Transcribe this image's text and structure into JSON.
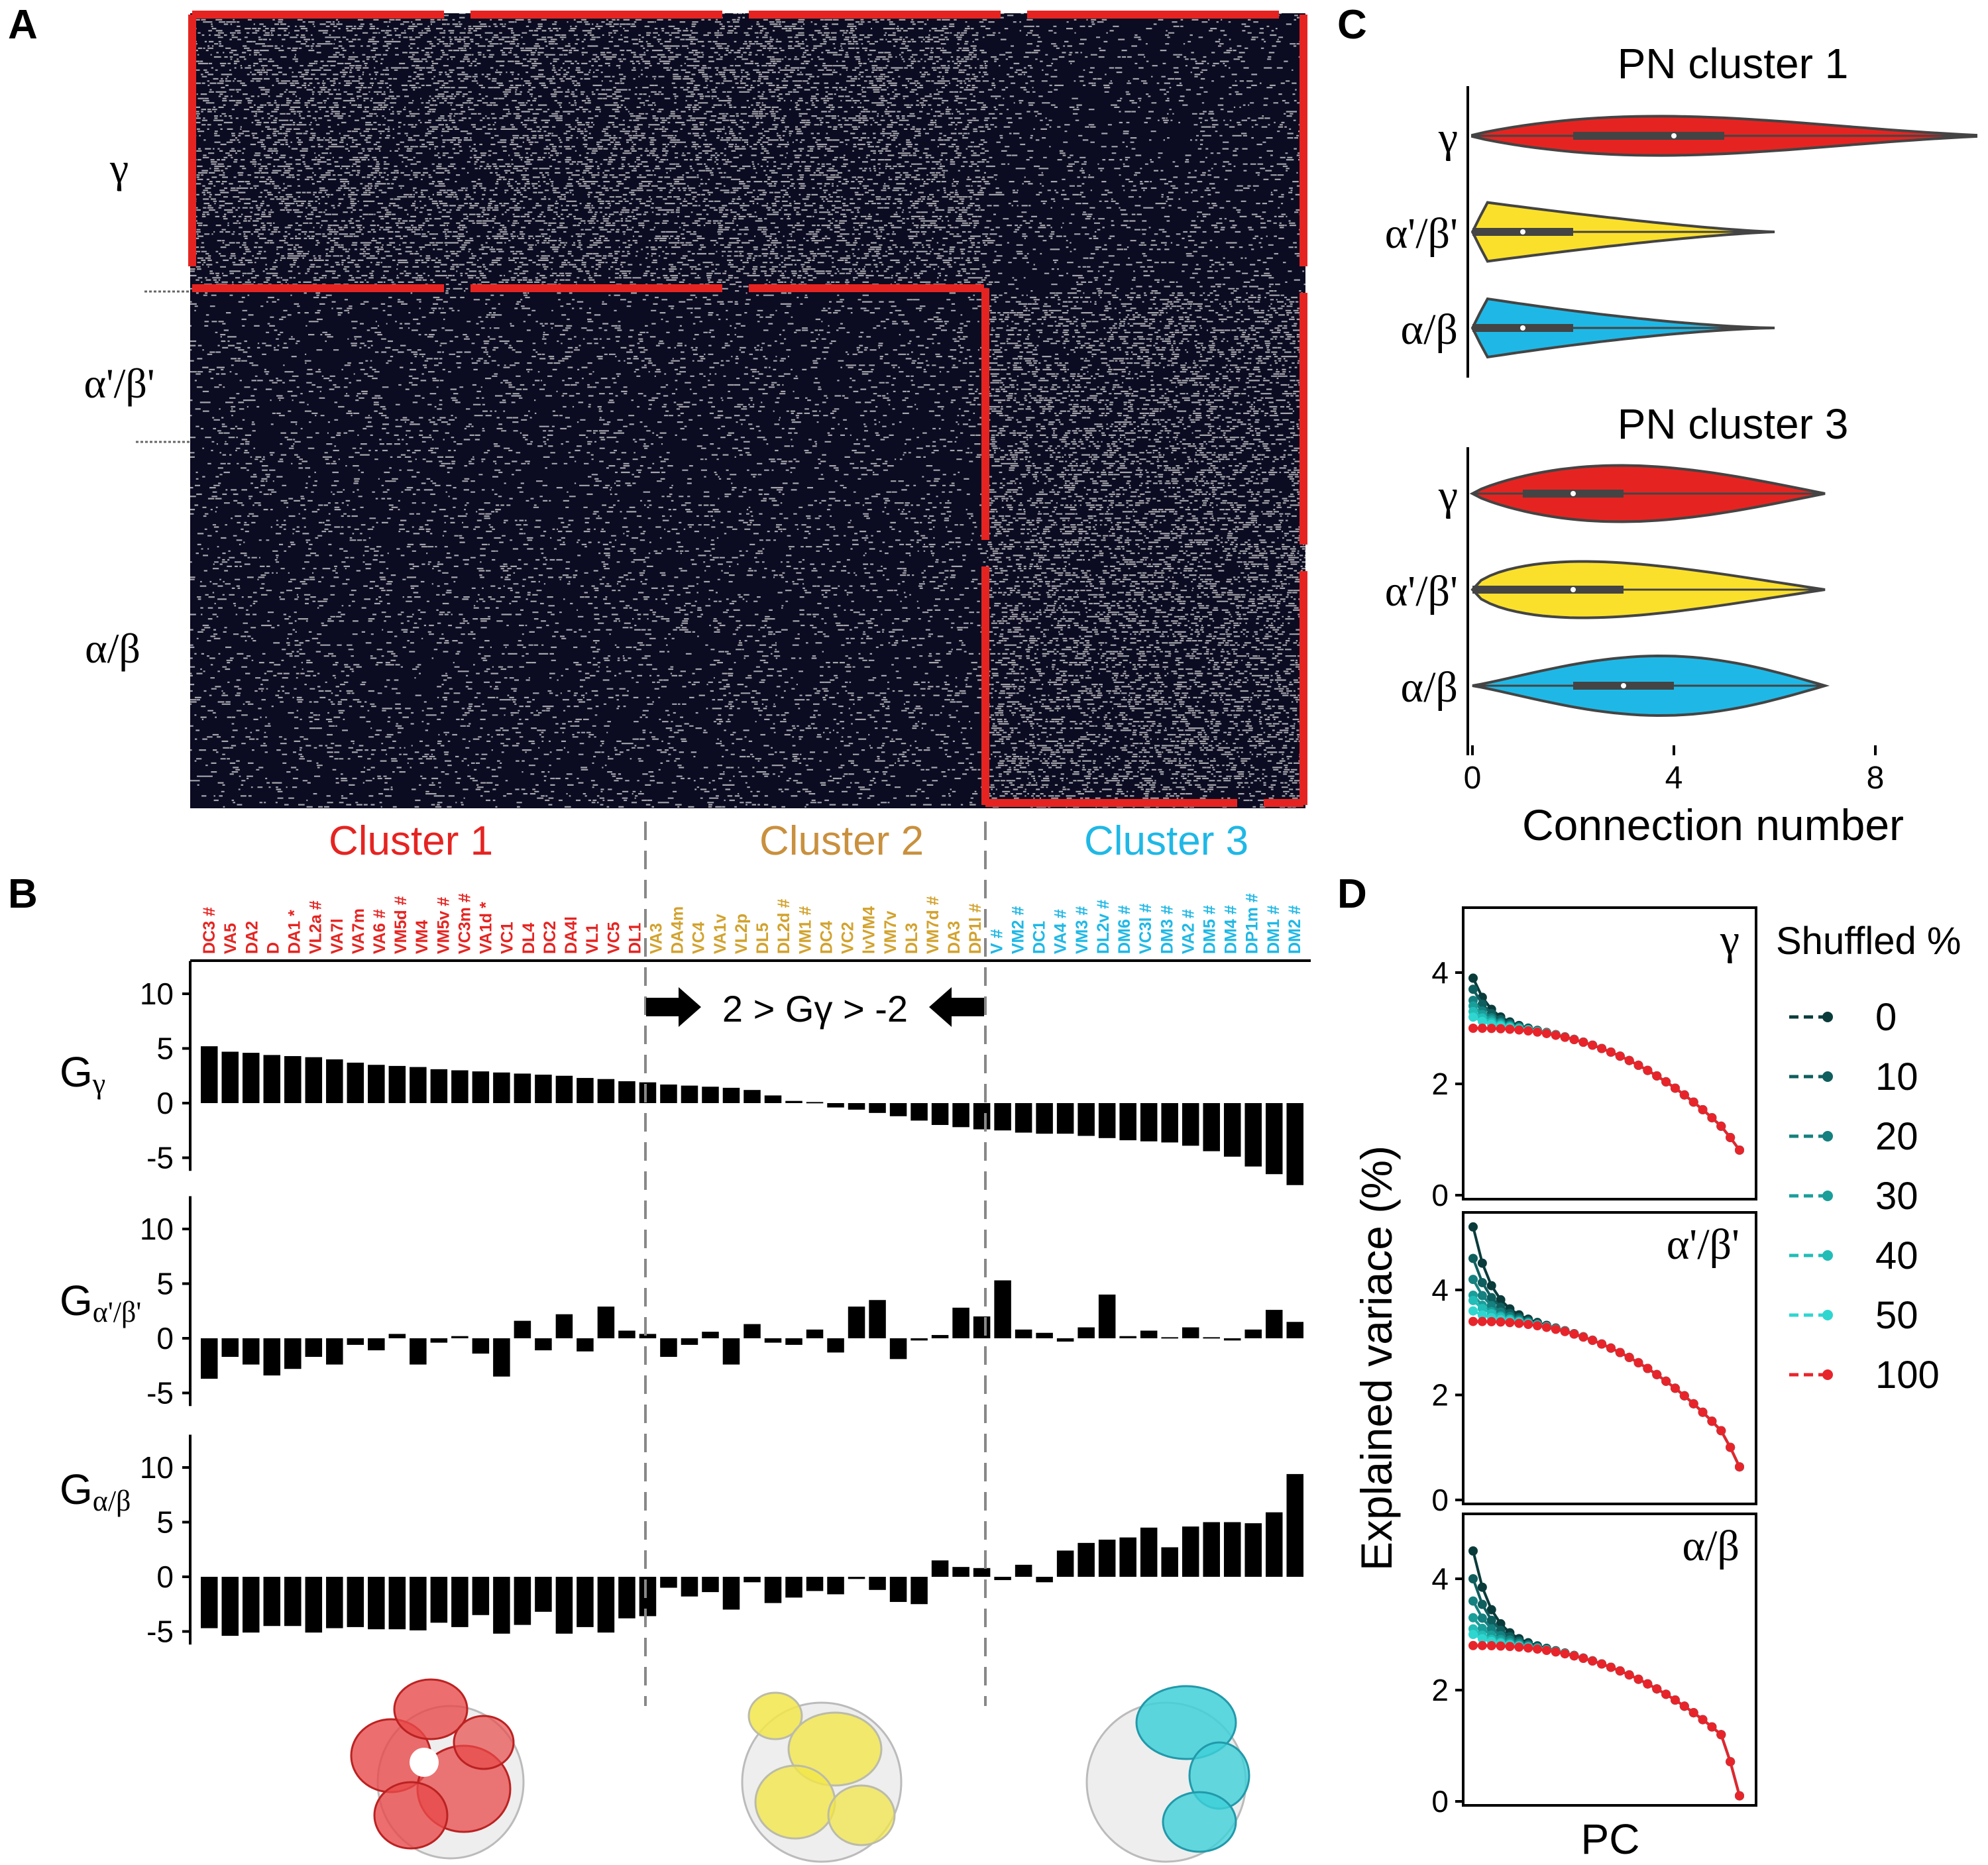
{
  "panel_letters": {
    "a": "A",
    "b": "B",
    "c": "C",
    "d": "D"
  },
  "colors": {
    "red": "#e52421",
    "gold": "#d2a22e",
    "cyan": "#1fb8e6",
    "yellow": "#fbe02b",
    "violet_red": "#e8242b",
    "heatmap_bg": "#0b0b22",
    "teal_dark": "#0a3b3b"
  },
  "panelA": {
    "row_labels": [
      "γ",
      "α'/β'",
      "α/β"
    ],
    "row_fractions": [
      0.35,
      0.19,
      0.46
    ]
  },
  "panelB": {
    "cluster_titles": [
      "Cluster 1",
      "Cluster 2",
      "Cluster 3"
    ],
    "glomeruli": {
      "cluster1": [
        "DC3 #",
        "VA5",
        "DA2",
        "D",
        "DA1 *",
        "VL2a #",
        "VA7l",
        "VA7m",
        "VA6 #",
        "VM5d #",
        "VM4",
        "VM5v #",
        "VC3m #",
        "VA1d *",
        "VC1",
        "DL4",
        "DC2",
        "DA4l",
        "VL1",
        "VC5",
        "DL1"
      ],
      "cluster2": [
        "VA3",
        "DA4m",
        "VC4",
        "VA1v",
        "VL2p",
        "DL5",
        "DL2d #",
        "VM1 #",
        "DC4",
        "VC2",
        "lvVM4",
        "VM7v",
        "DL3",
        "VM7d #",
        "DA3",
        "DP1l #"
      ],
      "cluster3": [
        "V #",
        "VM2 #",
        "DC1",
        "VA4 #",
        "VM3 #",
        "DL2v #",
        "DM6 #",
        "VC3l #",
        "DM3 #",
        "VA2 #",
        "DM5 #",
        "DM4 #",
        "DP1m #",
        "DM1 #",
        "DM2 #"
      ]
    },
    "arrow_annotation": "2 > Gγ > -2",
    "brain_icon_names": [
      "cluster1-glomeruli-render",
      "cluster2-glomeruli-render",
      "cluster3-glomeruli-render"
    ]
  },
  "chart_data": [
    {
      "type": "bar",
      "title": "",
      "ylabel_main": "G",
      "ylabel_sub": "γ",
      "ylim": [
        -7,
        13
      ],
      "yticks": [
        10,
        5,
        0,
        -5
      ],
      "values": [
        5.2,
        4.7,
        4.6,
        4.4,
        4.3,
        4.2,
        4.0,
        3.7,
        3.5,
        3.4,
        3.3,
        3.1,
        3.0,
        2.9,
        2.8,
        2.7,
        2.6,
        2.5,
        2.3,
        2.2,
        2.0,
        1.9,
        1.7,
        1.6,
        1.5,
        1.4,
        1.2,
        0.7,
        0.2,
        0.1,
        -0.4,
        -0.6,
        -0.9,
        -1.2,
        -1.6,
        -2.0,
        -2.2,
        -2.4,
        -2.5,
        -2.7,
        -2.8,
        -2.8,
        -3.0,
        -3.2,
        -3.4,
        -3.5,
        -3.6,
        -3.9,
        -4.4,
        -4.9,
        -5.8,
        -6.5,
        -7.5
      ]
    },
    {
      "type": "bar",
      "title": "",
      "ylabel_main": "G",
      "ylabel_sub": "α'/β'",
      "ylim": [
        -7,
        13
      ],
      "yticks": [
        10,
        5,
        0,
        -5
      ],
      "values": [
        -3.7,
        -1.7,
        -2.4,
        -3.4,
        -2.8,
        -1.7,
        -2.4,
        -0.6,
        -1.1,
        0.4,
        -2.4,
        -0.4,
        0.2,
        -1.4,
        -3.5,
        1.6,
        -1.1,
        2.2,
        -1.2,
        2.9,
        0.7,
        0.4,
        -1.7,
        -0.6,
        0.6,
        -2.4,
        1.3,
        -0.4,
        -0.6,
        0.8,
        -1.3,
        2.9,
        3.5,
        -1.9,
        -0.2,
        0.3,
        2.8,
        2.0,
        5.3,
        0.8,
        0.5,
        -0.3,
        1.0,
        4.0,
        0.2,
        0.7,
        0.1,
        1.0,
        0.1,
        -0.2,
        0.8,
        2.6,
        1.5
      ]
    },
    {
      "type": "bar",
      "title": "",
      "ylabel_main": "G",
      "ylabel_sub": "α/β",
      "ylim": [
        -7,
        13
      ],
      "yticks": [
        10,
        5,
        0,
        -5
      ],
      "values": [
        -4.7,
        -5.4,
        -5.1,
        -4.5,
        -4.5,
        -5.1,
        -4.7,
        -4.6,
        -4.8,
        -4.8,
        -4.9,
        -4.2,
        -4.6,
        -3.5,
        -5.2,
        -4.4,
        -3.2,
        -5.2,
        -4.6,
        -5.1,
        -3.8,
        -3.6,
        -1.0,
        -1.8,
        -1.4,
        -3.0,
        -0.5,
        -2.4,
        -1.9,
        -1.3,
        -1.6,
        -0.2,
        -1.2,
        -2.3,
        -2.5,
        1.5,
        0.9,
        0.8,
        -0.3,
        1.1,
        -0.5,
        2.4,
        3.1,
        3.4,
        3.6,
        4.5,
        2.7,
        4.6,
        5.0,
        5.0,
        4.9,
        5.9,
        9.4
      ]
    },
    {
      "type": "violin",
      "title": "PN cluster 1",
      "categories": [
        "γ",
        "α'/β'",
        "α/β"
      ],
      "colors": [
        "#e52421",
        "#fbe02b",
        "#1fb8e6"
      ],
      "ranges": [
        [
          0,
          10
        ],
        [
          0,
          6
        ],
        [
          0,
          6
        ]
      ],
      "medians": [
        4.0,
        1.0,
        1.0
      ],
      "iqr": [
        [
          2.0,
          5.0
        ],
        [
          0,
          2
        ],
        [
          0,
          2
        ]
      ],
      "xlabel": "Connection number",
      "xticks": [
        0,
        4,
        8
      ]
    },
    {
      "type": "violin",
      "title": "PN cluster 3",
      "categories": [
        "γ",
        "α'/β'",
        "α/β"
      ],
      "colors": [
        "#e52421",
        "#fbe02b",
        "#1fb8e6"
      ],
      "ranges": [
        [
          0,
          7
        ],
        [
          0,
          7
        ],
        [
          0,
          7
        ]
      ],
      "medians": [
        2.0,
        2.0,
        3.0
      ],
      "iqr": [
        [
          1,
          3
        ],
        [
          0,
          3
        ],
        [
          2,
          4
        ]
      ],
      "xlabel": "Connection number",
      "xticks": [
        0,
        4,
        8
      ]
    },
    {
      "type": "line",
      "xlabel": "PC",
      "ylabel": "Explained variace (%)",
      "legend_title": "Shuffled %",
      "legend": [
        "0",
        "10",
        "20",
        "30",
        "40",
        "50",
        "100"
      ],
      "legend_colors": [
        "#0a3b3b",
        "#0f5e5e",
        "#14807f",
        "#1a9e9a",
        "#22bdb7",
        "#2fd6d0",
        "#e8242b"
      ],
      "panels": [
        {
          "label": "γ",
          "ylim": [
            0,
            5
          ],
          "yticks": [
            4,
            2,
            0
          ],
          "start": [
            3.9,
            3.7,
            3.5,
            3.4,
            3.3,
            3.2,
            3.0
          ],
          "end": 0.7
        },
        {
          "label": "α'/β'",
          "ylim": [
            0,
            5.3
          ],
          "yticks": [
            4,
            2,
            0
          ],
          "start": [
            5.2,
            4.6,
            4.2,
            3.9,
            3.8,
            3.6,
            3.4
          ],
          "end": 0.5
        },
        {
          "label": "α/β",
          "ylim": [
            0,
            5
          ],
          "yticks": [
            4,
            2,
            0
          ],
          "start": [
            4.5,
            4.0,
            3.6,
            3.3,
            3.1,
            3.0,
            2.8
          ],
          "end": 0.0
        }
      ]
    }
  ]
}
